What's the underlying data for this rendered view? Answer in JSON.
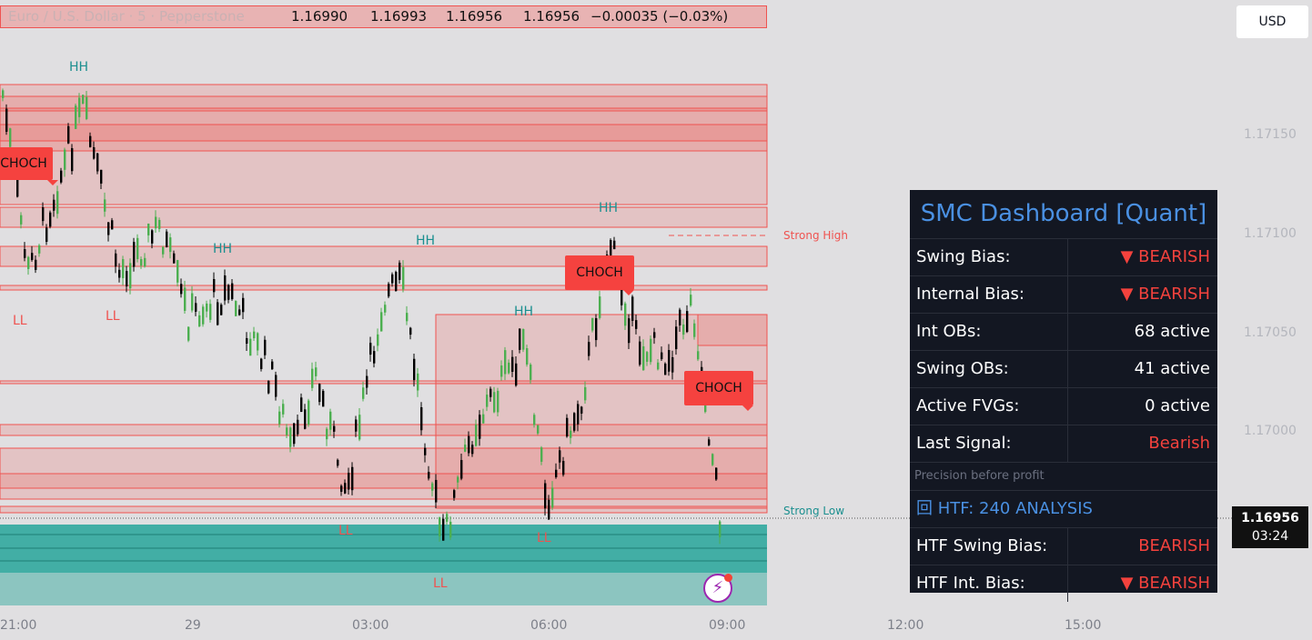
{
  "header": {
    "symbol": "Euro / U.S. Dollar · 5 · Pepperstone",
    "open": "1.16990",
    "high": "1.16993",
    "low": "1.16956",
    "close": "1.16956",
    "change": "−0.00035 (−0.03%)"
  },
  "currency_button": "USD",
  "price_axis": [
    "1.17150",
    "1.17100",
    "1.17050",
    "1.17000"
  ],
  "time_axis": [
    "21:00",
    "29",
    "03:00",
    "06:00",
    "09:00",
    "12:00",
    "15:00"
  ],
  "current_price": {
    "price": "1.16956",
    "countdown": "03:24"
  },
  "labels": {
    "hh": "HH",
    "ll": "LL",
    "choch": "CHOCH",
    "strong_high": "Strong High",
    "strong_low": "Strong Low"
  },
  "dashboard": {
    "title": "SMC Dashboard [Quant]",
    "rows": [
      {
        "key": "Swing Bias:",
        "value": "▼ BEARISH"
      },
      {
        "key": "Internal Bias:",
        "value": "▼ BEARISH"
      },
      {
        "key": "Int OBs:",
        "value": "68 active"
      },
      {
        "key": "Swing OBs:",
        "value": "41 active"
      },
      {
        "key": "Active FVGs:",
        "value": "0 active"
      },
      {
        "key": "Last Signal:",
        "value": "Bearish"
      }
    ],
    "note": "Precision before profit",
    "htf_title": "回 HTF: 240 ANALYSIS",
    "htf_rows": [
      {
        "key": "HTF Swing Bias:",
        "value": "BEARISH"
      },
      {
        "key": "HTF Int. Bias:",
        "value": "▼ BEARISH"
      }
    ]
  },
  "colors": {
    "bear_zone": "#ef5350",
    "bull_zone": "#26a69a",
    "accent": "#4a90e2"
  }
}
